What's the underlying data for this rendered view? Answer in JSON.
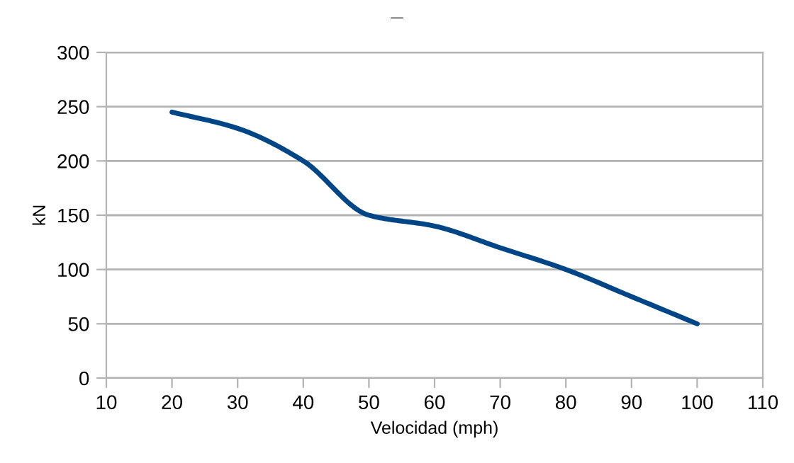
{
  "chart_data": {
    "type": "line",
    "title": "_",
    "xlabel": "Velocidad (mph)",
    "ylabel": "kN",
    "x": [
      20,
      30,
      40,
      50,
      60,
      70,
      80,
      90,
      100
    ],
    "series": [
      {
        "color": "#004586",
        "values": [
          245,
          230,
          200,
          150,
          140,
          120,
          100,
          75,
          50
        ]
      }
    ],
    "xlim": [
      10,
      110
    ],
    "xticks": [
      10,
      20,
      30,
      40,
      50,
      60,
      70,
      80,
      90,
      100,
      110
    ],
    "ylim": [
      0,
      300
    ],
    "yticks": [
      0,
      50,
      100,
      150,
      200,
      250,
      300
    ],
    "grid": "y",
    "marker": "none",
    "line_style": "solid"
  }
}
